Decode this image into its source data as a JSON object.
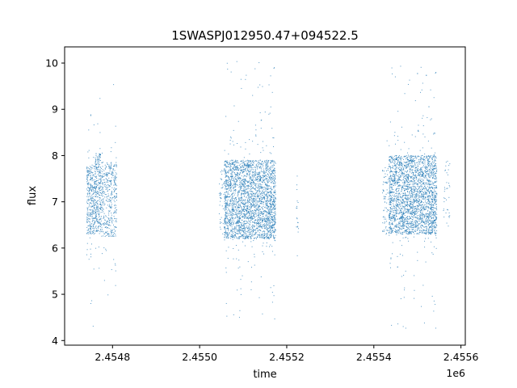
{
  "chart_data": {
    "type": "scatter",
    "title": "1SWASPJ012950.47+094522.5",
    "xlabel": "time",
    "ylabel": "flux",
    "x_offset_label": "1e6",
    "xlim": [
      2454690,
      2455610
    ],
    "ylim": [
      3.9,
      10.35
    ],
    "x_ticks": [
      2454800,
      2455000,
      2455200,
      2455400,
      2455600
    ],
    "x_tick_labels": [
      "2.4548",
      "2.4550",
      "2.4552",
      "2.4554",
      "2.4556"
    ],
    "y_ticks": [
      4,
      5,
      6,
      7,
      8,
      9,
      10
    ],
    "y_tick_labels": [
      "4",
      "5",
      "6",
      "7",
      "8",
      "9",
      "10"
    ],
    "grid": false,
    "marker_color": "#1f77b4",
    "series": [
      {
        "observing_seasons": [
          {
            "x_range": [
              2454741,
              2454760
            ],
            "y_center": 7.05,
            "y_half_width": 0.75,
            "outlier_range": [
              4.3,
              9.2
            ],
            "density": 3.0
          },
          {
            "x_range": [
              2454760,
              2454773
            ],
            "y_center": 7.2,
            "y_half_width": 0.85,
            "outlier_range": [
              5.5,
              9.15
            ],
            "density": 3.5
          },
          {
            "x_range": [
              2454773,
              2454810
            ],
            "y_center": 7.05,
            "y_half_width": 0.8,
            "outlier_range": [
              4.3,
              10.05
            ],
            "density": 2.0
          },
          {
            "x_range": [
              2455045,
              2455057
            ],
            "y_center": 7.0,
            "y_half_width": 0.75,
            "outlier_range": [
              5.5,
              8.9
            ],
            "density": 0.6
          },
          {
            "x_range": [
              2455057,
              2455175
            ],
            "y_center": 7.05,
            "y_half_width": 0.85,
            "outlier_range": [
              4.4,
              10.05
            ],
            "density": 4.0
          },
          {
            "x_range": [
              2455222,
              2455228
            ],
            "y_center": 7.0,
            "y_half_width": 0.8,
            "outlier_range": [
              5.8,
              8.7
            ],
            "density": 0.5
          },
          {
            "x_range": [
              2455420,
              2455435
            ],
            "y_center": 7.0,
            "y_half_width": 0.75,
            "outlier_range": [
              5.8,
              8.5
            ],
            "density": 0.8
          },
          {
            "x_range": [
              2455435,
              2455545
            ],
            "y_center": 7.15,
            "y_half_width": 0.85,
            "outlier_range": [
              4.2,
              9.95
            ],
            "density": 4.0
          },
          {
            "x_range": [
              2455560,
              2455575
            ],
            "y_center": 7.2,
            "y_half_width": 0.75,
            "outlier_range": [
              6.2,
              8.5
            ],
            "density": 0.4
          }
        ]
      }
    ]
  }
}
